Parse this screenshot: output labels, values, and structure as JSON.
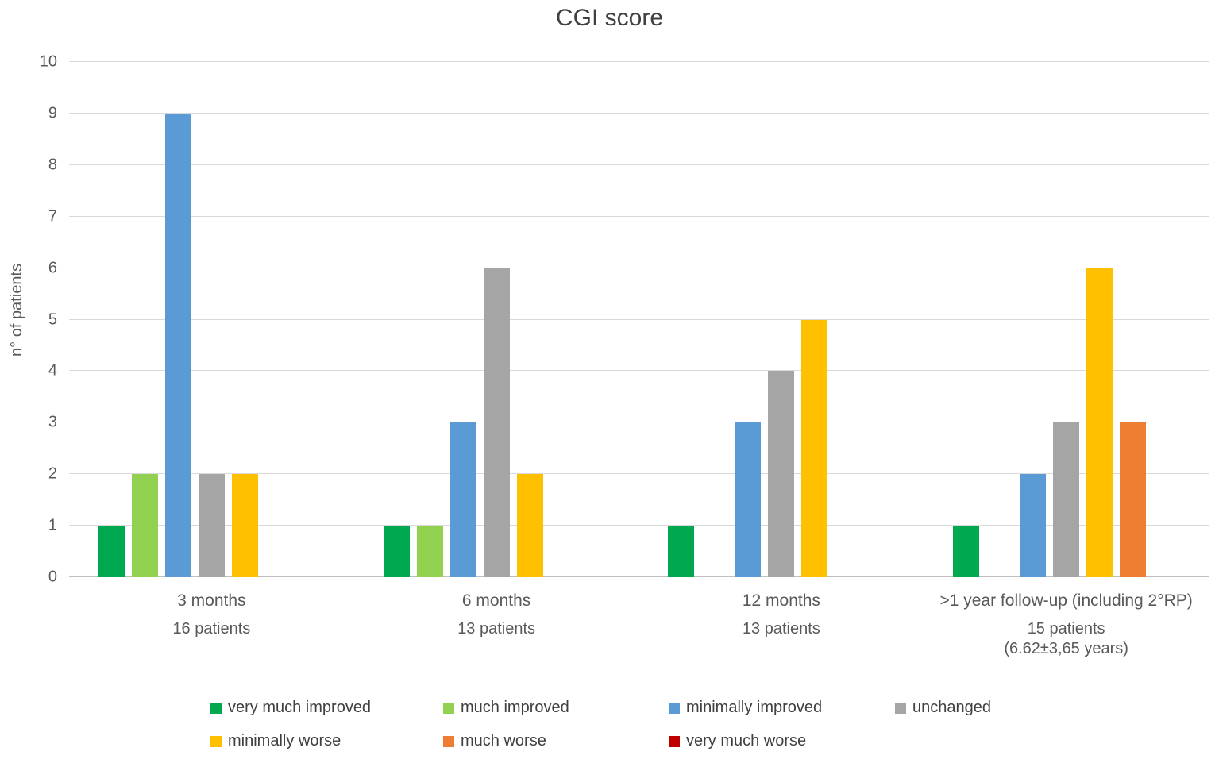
{
  "chart_data": {
    "type": "bar",
    "title": "CGI score",
    "xlabel": "",
    "ylabel": "n° of patients",
    "ylim": [
      0,
      10
    ],
    "ytick_step": 1,
    "yticks": [
      0,
      1,
      2,
      3,
      4,
      5,
      6,
      7,
      8,
      9,
      10
    ],
    "grid": true,
    "legend_position": "bottom",
    "background_color": "#FFFFFF",
    "gridline_color": "#D9D9D9",
    "axis_line_color": "#BFBFBF",
    "text_color": "#595959",
    "title_color": "#404040",
    "categories": [
      "3 months",
      "6 months",
      "12 months",
      ">1 year follow-up (including 2°RP)"
    ],
    "category_sublabels": [
      [
        "16 patients"
      ],
      [
        "13 patients"
      ],
      [
        "13 patients"
      ],
      [
        "15 patients",
        "(6.62±3,65 years)"
      ]
    ],
    "series": [
      {
        "name": "very much improved",
        "color": "#00A850",
        "values": [
          1,
          1,
          1,
          1
        ]
      },
      {
        "name": "much improved",
        "color": "#92D050",
        "values": [
          2,
          1,
          0,
          0
        ]
      },
      {
        "name": "minimally improved",
        "color": "#5B9BD5",
        "values": [
          9,
          3,
          3,
          2
        ]
      },
      {
        "name": "unchanged",
        "color": "#A5A5A5",
        "values": [
          2,
          6,
          4,
          3
        ]
      },
      {
        "name": "minimally worse",
        "color": "#FFC000",
        "values": [
          2,
          2,
          5,
          6
        ]
      },
      {
        "name": "much worse",
        "color": "#ED7D31",
        "values": [
          0,
          0,
          0,
          3
        ]
      },
      {
        "name": "very much worse",
        "color": "#C00000",
        "values": [
          0,
          0,
          0,
          0
        ]
      }
    ]
  }
}
